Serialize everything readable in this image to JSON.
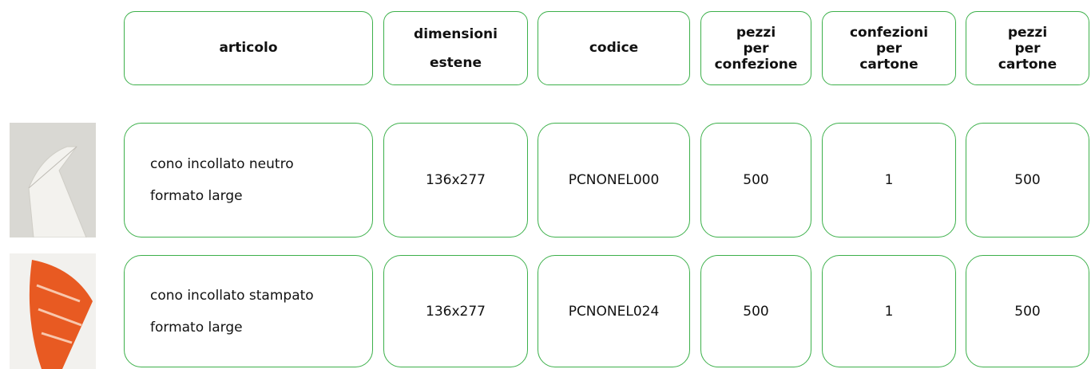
{
  "table": {
    "headers": [
      [
        "articolo"
      ],
      [
        "dimensioni",
        "estene"
      ],
      [
        "codice"
      ],
      [
        "pezzi",
        "per",
        "confezione"
      ],
      [
        "confezioni",
        "per",
        "cartone"
      ],
      [
        "pezzi",
        "per",
        "cartone"
      ]
    ],
    "rows": [
      [
        [
          "cono incollato neutro",
          "formato large"
        ],
        "136x277",
        "PCNONEL000",
        500,
        1,
        500
      ],
      [
        [
          "cono incollato stampato",
          "formato large"
        ],
        "136x277",
        "PCNONEL024",
        500,
        1,
        500
      ]
    ]
  }
}
